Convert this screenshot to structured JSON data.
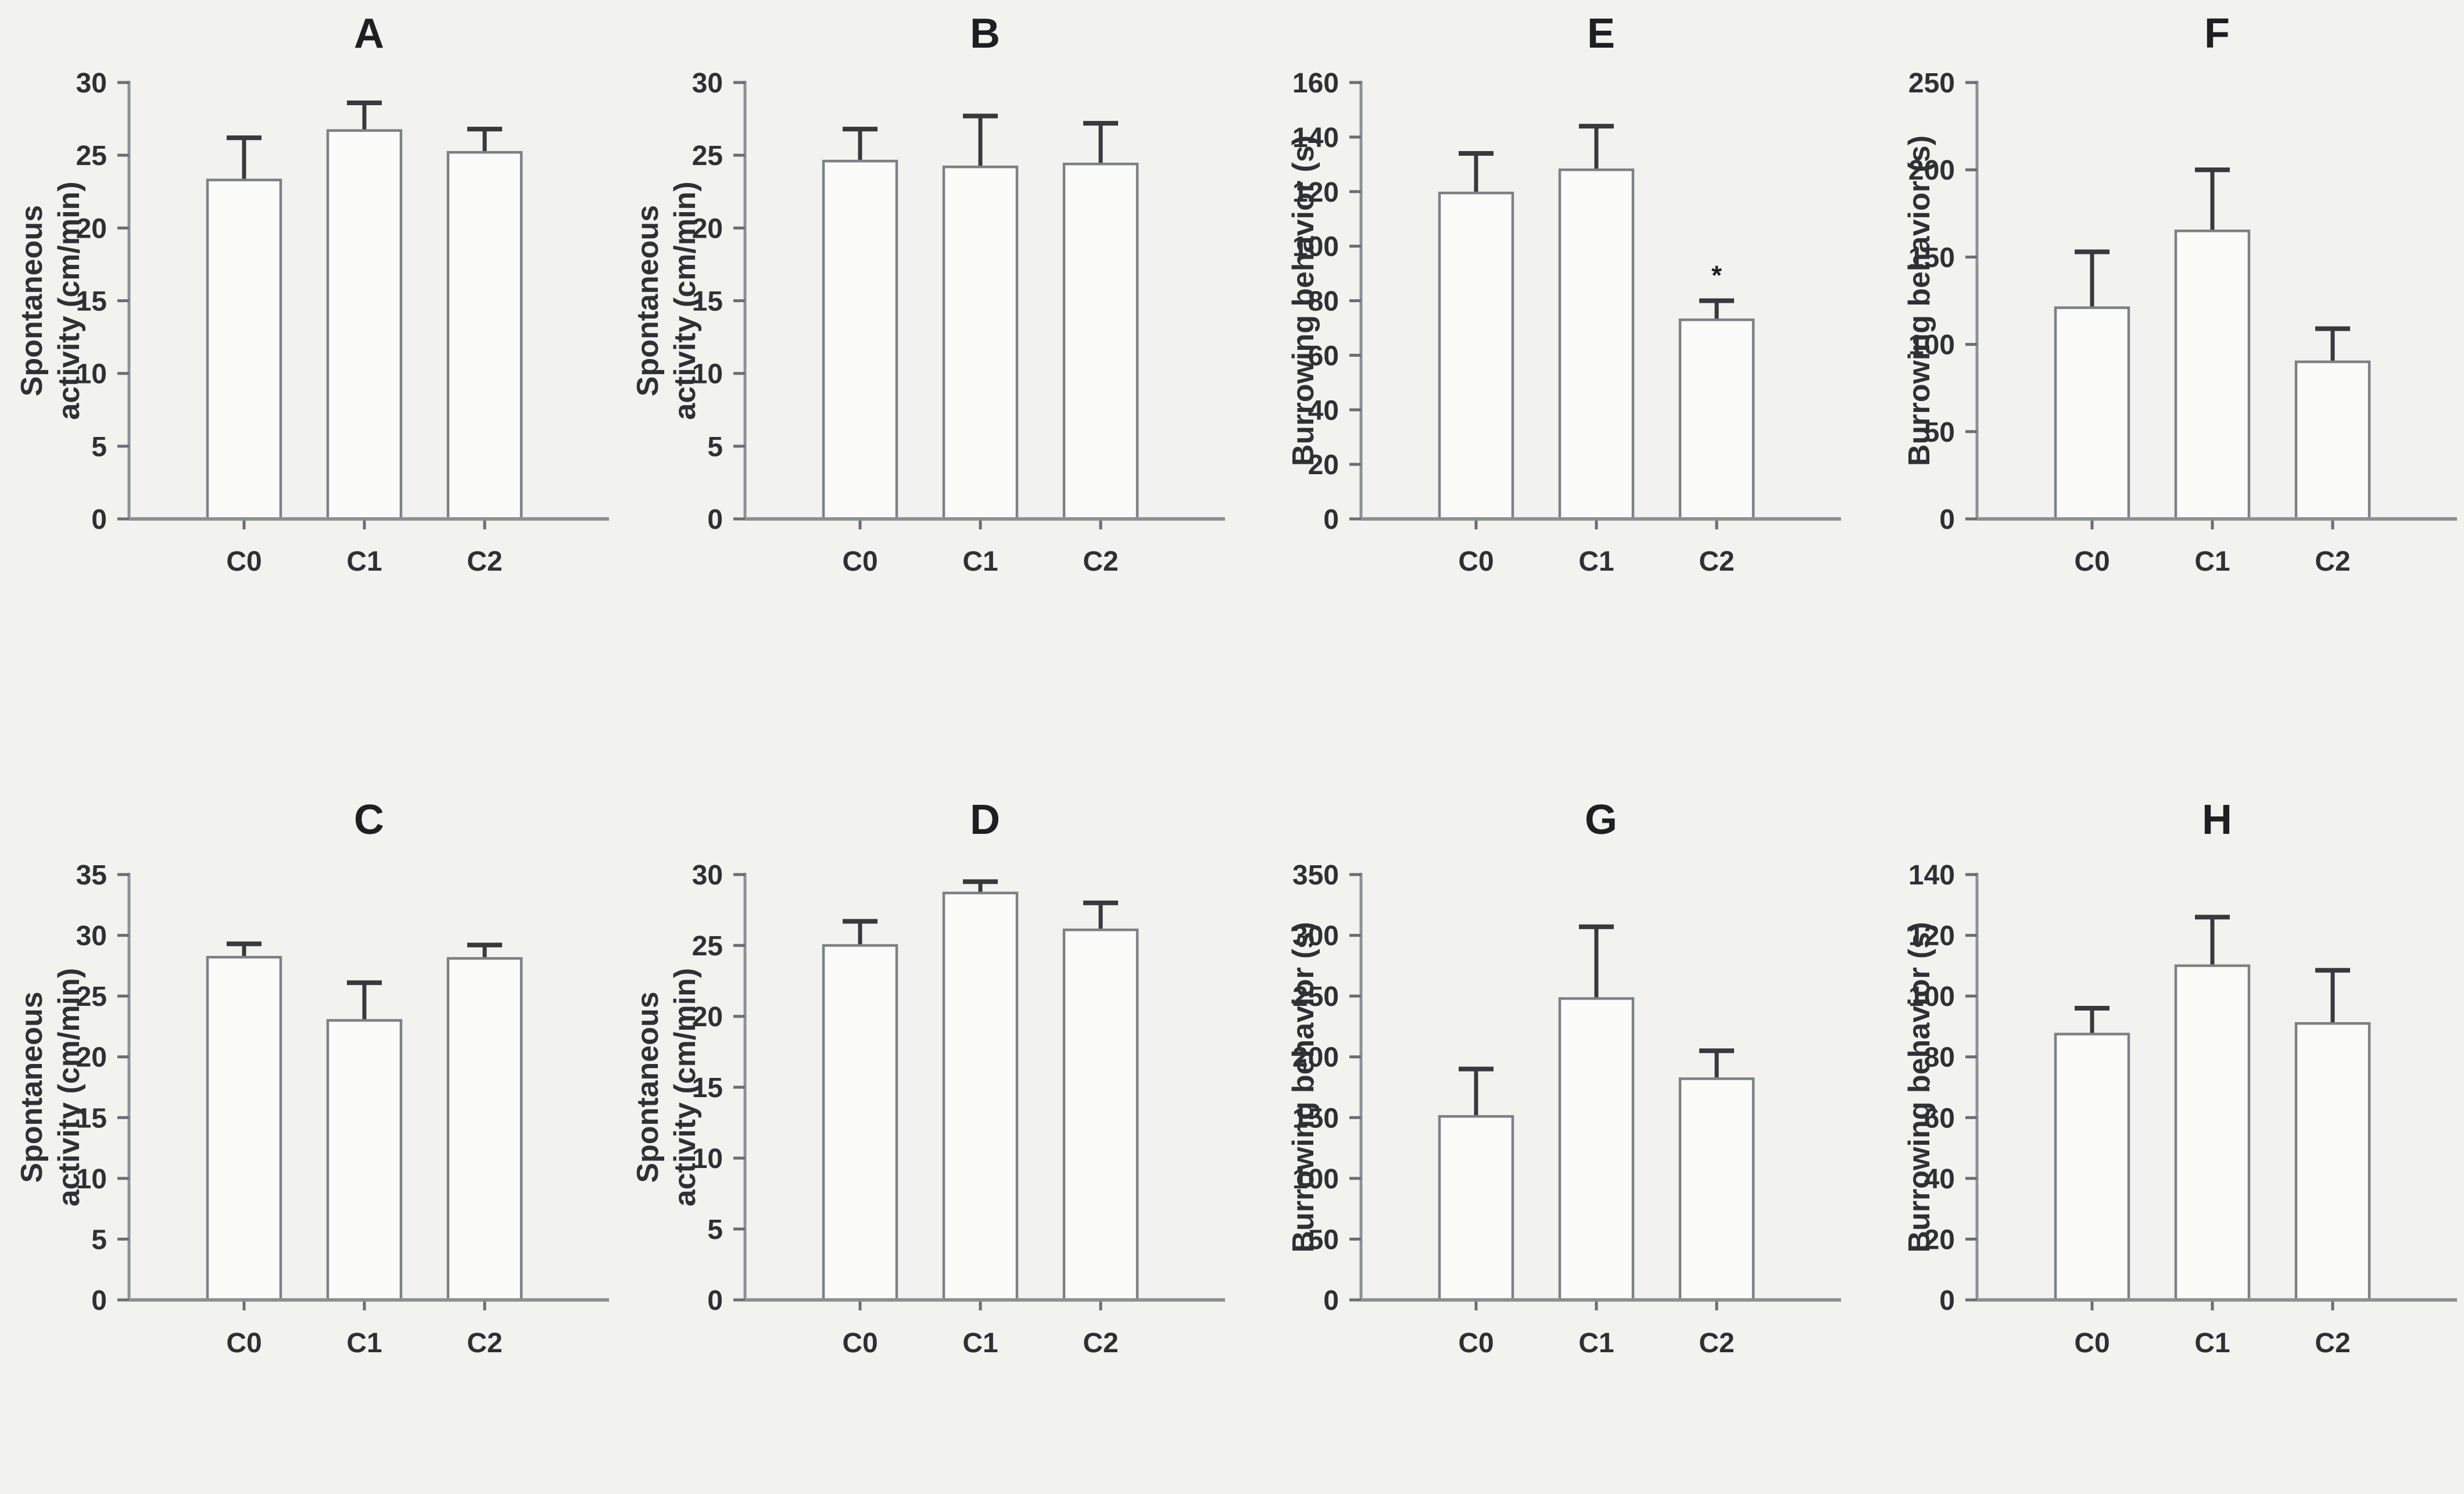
{
  "figure": {
    "background": "#f2f2ef",
    "panel_order": [
      "A",
      "B",
      "E",
      "F",
      "C",
      "D",
      "G",
      "H"
    ]
  },
  "colors": {
    "background": "#f2f2ef",
    "bar_fill": "#fbfbf9",
    "bar_stroke": "#7d8184",
    "axis": "#8d9194",
    "tick": "#6a6e71",
    "error_bar": "#37393c",
    "text": "#2e3033",
    "title": "#1d1f21"
  },
  "chart_data": [
    {
      "type": "bar",
      "title": "A",
      "ylabel_lines": [
        "Spontaneous",
        "activity (cm/min)"
      ],
      "ylabel": "Spontaneous activity (cm/min)",
      "xlabel": "",
      "ylim": [
        0,
        30
      ],
      "yticks": [
        0,
        5,
        10,
        15,
        20,
        25,
        30
      ],
      "categories": [
        "C0",
        "C1",
        "C2"
      ],
      "values": [
        23.3,
        26.7,
        25.2
      ],
      "errors_plus": [
        2.9,
        1.9,
        1.6
      ],
      "annotations": [],
      "grid": "off",
      "legend": "none"
    },
    {
      "type": "bar",
      "title": "B",
      "ylabel_lines": [
        "Spontaneous",
        "activity (cm/min)"
      ],
      "ylabel": "Spontaneous activity (cm/min)",
      "xlabel": "",
      "ylim": [
        0,
        30
      ],
      "yticks": [
        0,
        5,
        10,
        15,
        20,
        25,
        30
      ],
      "categories": [
        "C0",
        "C1",
        "C2"
      ],
      "values": [
        24.6,
        24.2,
        24.4
      ],
      "errors_plus": [
        2.2,
        3.5,
        2.8
      ],
      "annotations": [],
      "grid": "off",
      "legend": "none"
    },
    {
      "type": "bar",
      "title": "E",
      "ylabel_lines": [
        "Burrowing behavior (s)"
      ],
      "ylabel": "Burrowing behavior (s)",
      "xlabel": "",
      "ylim": [
        0,
        160
      ],
      "yticks": [
        0,
        20,
        40,
        60,
        80,
        100,
        120,
        140,
        160
      ],
      "categories": [
        "C0",
        "C1",
        "C2"
      ],
      "values": [
        119.5,
        128,
        73
      ],
      "errors_plus": [
        14.5,
        16,
        7
      ],
      "annotations": [
        {
          "category_index": 2,
          "text": "*",
          "y": 86
        }
      ],
      "grid": "off",
      "legend": "none"
    },
    {
      "type": "bar",
      "title": "F",
      "ylabel_lines": [
        "Burrowing behavior (s)"
      ],
      "ylabel": "Burrowing behavior (s)",
      "xlabel": "",
      "ylim": [
        0,
        250
      ],
      "yticks": [
        0,
        50,
        100,
        150,
        200,
        250
      ],
      "categories": [
        "C0",
        "C1",
        "C2"
      ],
      "values": [
        121,
        165,
        90
      ],
      "errors_plus": [
        32,
        35,
        19
      ],
      "annotations": [],
      "grid": "off",
      "legend": "none"
    },
    {
      "type": "bar",
      "title": "C",
      "ylabel_lines": [
        "Spontaneous",
        "activity (cm/min)"
      ],
      "ylabel": "Spontaneous activity (cm/min)",
      "xlabel": "",
      "ylim": [
        0,
        35
      ],
      "yticks": [
        0,
        5,
        10,
        15,
        20,
        25,
        30,
        35
      ],
      "categories": [
        "C0",
        "C1",
        "C2"
      ],
      "values": [
        28.2,
        23.0,
        28.1
      ],
      "errors_plus": [
        1.1,
        3.1,
        1.1
      ],
      "annotations": [],
      "grid": "off",
      "legend": "none"
    },
    {
      "type": "bar",
      "title": "D",
      "ylabel_lines": [
        "Spontaneous",
        "activity (cm/min)"
      ],
      "ylabel": "Spontaneous activity (cm/min)",
      "xlabel": "",
      "ylim": [
        0,
        30
      ],
      "yticks": [
        0,
        5,
        10,
        15,
        20,
        25,
        30
      ],
      "categories": [
        "C0",
        "C1",
        "C2"
      ],
      "values": [
        25.0,
        28.7,
        26.1
      ],
      "errors_plus": [
        1.7,
        0.8,
        1.9
      ],
      "annotations": [],
      "grid": "off",
      "legend": "none"
    },
    {
      "type": "bar",
      "title": "G",
      "ylabel_lines": [
        "Burrowing behavior (s)"
      ],
      "ylabel": "Burrowing behavior (s)",
      "xlabel": "",
      "ylim": [
        0,
        350
      ],
      "yticks": [
        0,
        50,
        100,
        150,
        200,
        250,
        300,
        350
      ],
      "categories": [
        "C0",
        "C1",
        "C2"
      ],
      "values": [
        151,
        248,
        182
      ],
      "errors_plus": [
        39,
        59,
        23
      ],
      "annotations": [],
      "grid": "off",
      "legend": "none"
    },
    {
      "type": "bar",
      "title": "H",
      "ylabel_lines": [
        "Burrowing behavior (s)"
      ],
      "ylabel": "Burrowing behavior (s)",
      "xlabel": "",
      "ylim": [
        0,
        140
      ],
      "yticks": [
        0,
        20,
        40,
        60,
        80,
        100,
        120,
        140
      ],
      "categories": [
        "C0",
        "C1",
        "C2"
      ],
      "values": [
        87.5,
        110,
        91
      ],
      "errors_plus": [
        8.5,
        16,
        17.5
      ],
      "annotations": [],
      "grid": "off",
      "legend": "none"
    }
  ]
}
